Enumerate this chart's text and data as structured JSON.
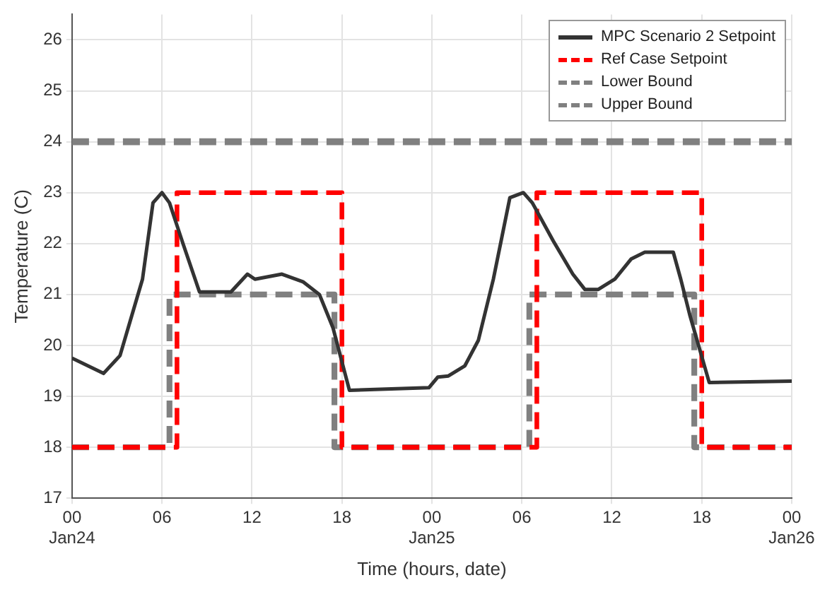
{
  "chart_data": {
    "type": "line",
    "xlabel": "Time (hours, date)",
    "ylabel": "Temperature (C)",
    "xlim": [
      "--01-24T00:00",
      "--01-26T00:00"
    ],
    "ylim": [
      17,
      26.5
    ],
    "xticks": [
      {
        "value": "--01-24T00:00",
        "label": "00\nJan24"
      },
      {
        "value": "--01-24T06:00",
        "label": "06"
      },
      {
        "value": "--01-24T12:00",
        "label": "12"
      },
      {
        "value": "--01-24T18:00",
        "label": "18"
      },
      {
        "value": "--01-25T00:00",
        "label": "00\nJan25"
      },
      {
        "value": "--01-25T06:00",
        "label": "06"
      },
      {
        "value": "--01-25T12:00",
        "label": "12"
      },
      {
        "value": "--01-25T18:00",
        "label": "18"
      },
      {
        "value": "--01-26T00:00",
        "label": "00\nJan26"
      }
    ],
    "yticks": [
      17,
      18,
      19,
      20,
      21,
      22,
      23,
      24,
      25,
      26
    ],
    "grid": true,
    "legend": "top right",
    "marker": "none",
    "series": [
      {
        "name": "MPC Scenario 2 Setpoint",
        "color": "#333333",
        "line_style": "solid",
        "x": [
          "--01-24T00:00",
          "--01-24T02:06",
          "--01-24T03:12",
          "--01-24T04:06",
          "--01-24T04:42",
          "--01-24T05:24",
          "--01-24T06:00",
          "--01-24T06:30",
          "--01-24T07:24",
          "--01-24T08:30",
          "--01-24T10:36",
          "--01-24T11:42",
          "--01-24T12:12",
          "--01-24T14:00",
          "--01-24T15:24",
          "--01-24T16:30",
          "--01-24T17:24",
          "--01-24T18:30",
          "--01-24T23:48",
          "--01-25T00:24",
          "--01-25T01:06",
          "--01-25T02:12",
          "--01-25T03:06",
          "--01-25T04:06",
          "--01-25T05:12",
          "--01-25T06:06",
          "--01-25T06:42",
          "--01-25T08:06",
          "--01-25T09:24",
          "--01-25T10:12",
          "--01-25T11:06",
          "--01-25T12:12",
          "--01-25T13:18",
          "--01-25T14:12",
          "--01-25T16:06",
          "--01-25T16:36",
          "--01-25T17:12",
          "--01-25T18:30",
          "--01-26T00:00"
        ],
        "values": [
          19.75,
          19.45,
          19.8,
          20.7,
          21.3,
          22.8,
          23.0,
          22.8,
          22.0,
          21.05,
          21.05,
          21.4,
          21.3,
          21.4,
          21.25,
          21.0,
          20.35,
          19.12,
          19.17,
          19.38,
          19.4,
          19.6,
          20.1,
          21.3,
          22.9,
          23.0,
          22.8,
          22.05,
          21.4,
          21.1,
          21.1,
          21.3,
          21.7,
          21.83,
          21.83,
          21.3,
          20.6,
          19.27,
          19.3
        ]
      },
      {
        "name": "Ref Case Setpoint",
        "color": "#ff0000",
        "type": "step",
        "line_style": "dashed",
        "x": [
          "--01-24T00:00",
          "--01-24T07:00",
          "--01-24T18:00",
          "--01-25T07:00",
          "--01-25T18:00",
          "--01-26T00:00"
        ],
        "values": [
          18,
          23,
          18,
          23,
          18,
          18
        ]
      },
      {
        "name": "Lower Bound",
        "color": "#808080",
        "type": "step",
        "line_style": "dashed",
        "x": [
          "--01-24T00:00",
          "--01-24T06:30",
          "--01-24T17:30",
          "--01-25T06:30",
          "--01-25T17:30",
          "--01-26T00:00"
        ],
        "values": [
          18,
          21,
          18,
          21,
          18,
          18
        ]
      },
      {
        "name": "Upper Bound",
        "color": "#808080",
        "line_style": "dashed",
        "x": [
          "--01-24T00:00",
          "--01-26T00:00"
        ],
        "values": [
          24,
          24
        ]
      }
    ]
  }
}
